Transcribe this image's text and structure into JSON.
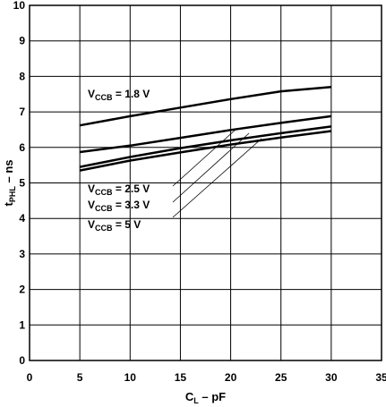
{
  "chart_data": {
    "type": "line",
    "xlabel": {
      "main": "C",
      "sub": "L",
      "rest": " – pF"
    },
    "ylabel": {
      "main": "t",
      "sub": "PHL",
      "rest": " – ns"
    },
    "xlim": [
      0,
      35
    ],
    "ylim": [
      0,
      10
    ],
    "xticks": [
      0,
      5,
      10,
      15,
      20,
      25,
      30,
      35
    ],
    "yticks": [
      0,
      1,
      2,
      3,
      4,
      5,
      6,
      7,
      8,
      9,
      10
    ],
    "grid": true,
    "series": [
      {
        "name": {
          "main": "V",
          "sub": "CCB",
          "rest": " = 1.8 V"
        },
        "x": [
          5,
          10,
          15,
          20,
          25,
          30
        ],
        "y": [
          6.62,
          6.88,
          7.12,
          7.36,
          7.58,
          7.7
        ]
      },
      {
        "name": {
          "main": "V",
          "sub": "CCB",
          "rest": " = 2.5 V"
        },
        "x": [
          5,
          10,
          15,
          20,
          25,
          30
        ],
        "y": [
          5.87,
          6.05,
          6.27,
          6.49,
          6.69,
          6.88
        ]
      },
      {
        "name": {
          "main": "V",
          "sub": "CCB",
          "rest": " = 3.3 V"
        },
        "x": [
          5,
          10,
          15,
          20,
          25,
          30
        ],
        "y": [
          5.45,
          5.73,
          5.98,
          6.2,
          6.4,
          6.59
        ]
      },
      {
        "name": {
          "main": "V",
          "sub": "CCB",
          "rest": " = 5 V"
        },
        "x": [
          5,
          10,
          15,
          20,
          25,
          30
        ],
        "y": [
          5.35,
          5.63,
          5.86,
          6.08,
          6.28,
          6.46
        ]
      }
    ]
  }
}
